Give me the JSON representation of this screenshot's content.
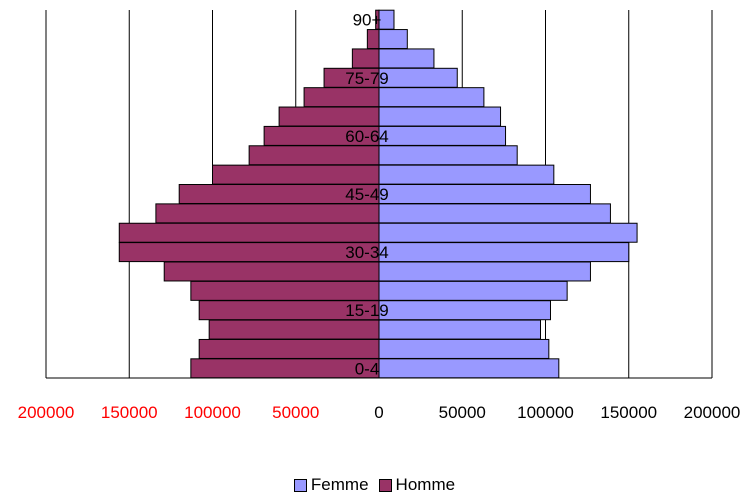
{
  "chart_data": {
    "type": "bar",
    "orientation": "horizontal",
    "layout": "population-pyramid",
    "categories": [
      "0-4",
      "5-9",
      "10-14",
      "15-19",
      "20-24",
      "25-29",
      "30-34",
      "35-39",
      "40-44",
      "45-49",
      "50-54",
      "55-59",
      "60-64",
      "65-69",
      "70-74",
      "75-79",
      "80-84",
      "85-89",
      "90+"
    ],
    "visible_category_labels": [
      "0-4",
      "15-19",
      "30-34",
      "45-49",
      "60-64",
      "75-79",
      "90+"
    ],
    "series": [
      {
        "name": "Femme",
        "color": "#9999ff",
        "values": [
          108000,
          102000,
          97000,
          103000,
          113000,
          127000,
          150000,
          155000,
          139000,
          127000,
          105000,
          83000,
          76000,
          73000,
          63000,
          47000,
          33000,
          17000,
          9000
        ]
      },
      {
        "name": "Homme",
        "color": "#993366",
        "values": [
          113000,
          108000,
          102000,
          108000,
          113000,
          129000,
          156000,
          156000,
          134000,
          120000,
          100000,
          78000,
          69000,
          60000,
          45000,
          33000,
          16000,
          7000,
          2000
        ]
      }
    ],
    "x_ticks": [
      "200000",
      "150000",
      "100000",
      "50000",
      "0",
      "50000",
      "100000",
      "150000",
      "200000"
    ],
    "negative_tick_color": "#ff0000",
    "xlim": [
      -200000,
      200000
    ],
    "grid": true,
    "legend_position": "bottom"
  }
}
